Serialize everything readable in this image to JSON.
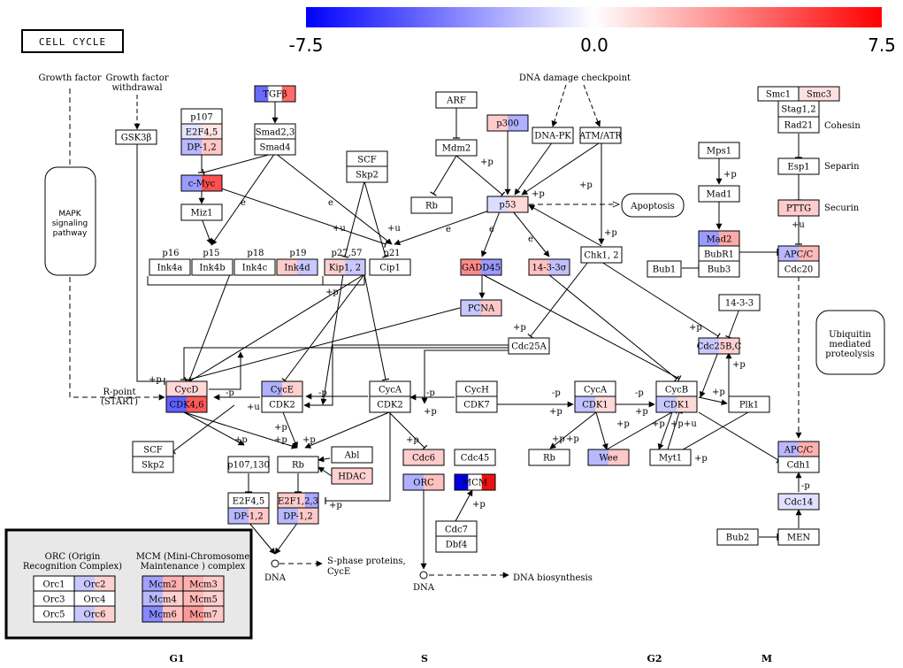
{
  "title": "CELL CYCLE",
  "colors": {
    "neg": "#0000ff",
    "zero": "#ffffff",
    "pos": "#ff0000"
  },
  "scale": {
    "min": -7.5,
    "max": 7.5,
    "labels": [
      "-7.5",
      "0.0",
      "7.5"
    ]
  },
  "phases": [
    "G1",
    "S",
    "G2",
    "M"
  ],
  "free_labels": {
    "growth_factor": "Growth factor",
    "growth_factor_withdrawal_1": "Growth factor",
    "growth_factor_withdrawal_2": "withdrawal",
    "dna_damage_checkpoint": "DNA damage checkpoint",
    "r_point_1": "R-point",
    "r_point_2": "(START)",
    "p16": "p16",
    "p15": "p15",
    "p18": "p18",
    "p19": "p19",
    "p27_57": "p27,57",
    "p21": "p21",
    "cohesin": "Cohesin",
    "separin": "Separin",
    "securin": "Securin",
    "dna_1": "DNA",
    "dna_2": "DNA",
    "s_phase_proteins_1": "S-phase proteins,",
    "s_phase_proteins_2": "CycE",
    "dna_biosynthesis": "DNA biosynthesis"
  },
  "modules": {
    "mapk": [
      "MAPK",
      "signaling",
      "pathway"
    ],
    "apoptosis": [
      "Apoptosis"
    ],
    "ubiquitin": [
      "Ubiquitin",
      "mediated",
      "proteolysis"
    ]
  },
  "legend": {
    "orc_title": [
      "ORC (Origin",
      "Recognition Complex)"
    ],
    "mcm_title": [
      "MCM (Mini-Chromosome",
      "Maintenance ) complex"
    ],
    "orc_items": [
      "Orc1",
      "Orc2",
      "Orc3",
      "Orc4",
      "Orc5",
      "Orc6"
    ],
    "mcm_items": [
      "Mcm2",
      "Mcm3",
      "Mcm4",
      "Mcm5",
      "Mcm6",
      "Mcm7"
    ]
  },
  "genes": {
    "tgfb": {
      "label": "TGFβ",
      "colors": [
        "#6a6aff",
        "#ffffff",
        "#ff6a6a"
      ]
    },
    "smad23": {
      "label": "Smad2,3",
      "colors": [
        "#ffffff"
      ]
    },
    "smad4": {
      "label": "Smad4",
      "colors": [
        "#ffffff"
      ]
    },
    "p107": {
      "label": "p107",
      "colors": [
        "#ffffff"
      ]
    },
    "e2f45_a": {
      "label": "E2F4,5",
      "colors": [
        "#e4e4ff",
        "#ffe4e4"
      ]
    },
    "dp12_a": {
      "label": "DP-1,2",
      "colors": [
        "#b8b8ff",
        "#ffc6c6"
      ]
    },
    "cmyc": {
      "label": "c-Myc",
      "colors": [
        "#9a9aff",
        "#ff5050"
      ]
    },
    "miz1": {
      "label": "Miz1",
      "colors": [
        "#ffffff"
      ]
    },
    "gsk3b": {
      "label": "GSK3β",
      "colors": [
        "#ffffff"
      ]
    },
    "ink4a": {
      "label": "Ink4a",
      "colors": [
        "#ffffff"
      ]
    },
    "ink4b": {
      "label": "Ink4b",
      "colors": [
        "#ffffff"
      ]
    },
    "ink4c": {
      "label": "Ink4c",
      "colors": [
        "#ffffff"
      ]
    },
    "ink4d": {
      "label": "Ink4d",
      "colors": [
        "#ffcccc",
        "#c8c8ff"
      ]
    },
    "scf_a": {
      "label": "SCF",
      "colors": [
        "#ffffff"
      ]
    },
    "skp2_a": {
      "label": "Skp2",
      "colors": [
        "#ffffff"
      ]
    },
    "kip12": {
      "label": "Kip1, 2",
      "colors": [
        "#ffd0d0",
        "#c8c8ff"
      ]
    },
    "cip1": {
      "label": "Cip1",
      "colors": [
        "#ffffff"
      ]
    },
    "arf": {
      "label": "ARF",
      "colors": [
        "#ffffff"
      ]
    },
    "mdm2": {
      "label": "Mdm2",
      "colors": [
        "#ffffff"
      ]
    },
    "rb_a": {
      "label": "Rb",
      "colors": [
        "#ffffff"
      ]
    },
    "p300": {
      "label": "p300",
      "colors": [
        "#ffcccc",
        "#b0b0ff"
      ]
    },
    "dnapk": {
      "label": "DNA-PK",
      "colors": [
        "#ffffff"
      ]
    },
    "atmatr": {
      "label": "ATM/ATR",
      "colors": [
        "#ffffff"
      ]
    },
    "p53": {
      "label": "p53",
      "colors": [
        "#dcdcff",
        "#ffd8d8"
      ]
    },
    "gadd45": {
      "label": "GADD45",
      "colors": [
        "#ff8c8c",
        "#9a9aff"
      ]
    },
    "s1433s": {
      "label": "14-3-3σ",
      "colors": [
        "#ffc0c0",
        "#c0c0ff"
      ]
    },
    "chk12": {
      "label": "Chk1, 2",
      "colors": [
        "#ffffff"
      ]
    },
    "pcna": {
      "label": "PCNA",
      "colors": [
        "#c8c8ff",
        "#ffc8c8"
      ]
    },
    "mps1": {
      "label": "Mps1",
      "colors": [
        "#ffffff"
      ]
    },
    "mad1": {
      "label": "Mad1",
      "colors": [
        "#ffffff"
      ]
    },
    "mad2": {
      "label": "Mad2",
      "colors": [
        "#9a9aff",
        "#ffaaaa"
      ]
    },
    "bubr1": {
      "label": "BubR1",
      "colors": [
        "#ffffff"
      ]
    },
    "bub3": {
      "label": "Bub3",
      "colors": [
        "#ffffff"
      ]
    },
    "bub1": {
      "label": "Bub1",
      "colors": [
        "#ffffff"
      ]
    },
    "smc1": {
      "label": "Smc1",
      "colors": [
        "#ffffff"
      ]
    },
    "smc3": {
      "label": "Smc3",
      "colors": [
        "#ffe0e0"
      ]
    },
    "stag12": {
      "label": "Stag1,2",
      "colors": [
        "#ffffff"
      ]
    },
    "rad21": {
      "label": "Rad21",
      "colors": [
        "#ffffff"
      ]
    },
    "esp1": {
      "label": "Esp1",
      "colors": [
        "#ffffff"
      ]
    },
    "pttg": {
      "label": "PTTG",
      "colors": [
        "#ffcccc"
      ]
    },
    "apcc_a": {
      "label": "APC/C",
      "colors": [
        "#b8b8ff",
        "#ffb8b8"
      ]
    },
    "cdc20": {
      "label": "Cdc20",
      "colors": [
        "#ffffff"
      ]
    },
    "s1433": {
      "label": "14-3-3",
      "colors": [
        "#ffffff"
      ]
    },
    "cdc25bc": {
      "label": "Cdc25B,C",
      "colors": [
        "#c8c8ff",
        "#ffd0d0"
      ]
    },
    "cdc25a": {
      "label": "Cdc25A",
      "colors": [
        "#ffffff"
      ]
    },
    "cycd": {
      "label": "CycD",
      "colors": [
        "#ffd8d8"
      ]
    },
    "cdk46": {
      "label": "CDK4,6",
      "colors": [
        "#6060ff",
        "#ff5a5a"
      ]
    },
    "cyce": {
      "label": "CycE",
      "colors": [
        "#b0b0ff",
        "#ffd0d0"
      ]
    },
    "cdk2_a": {
      "label": "CDK2",
      "colors": [
        "#ffffff"
      ]
    },
    "cyca_a": {
      "label": "CycA",
      "colors": [
        "#ffffff"
      ]
    },
    "cdk2_b": {
      "label": "CDK2",
      "colors": [
        "#ffffff"
      ]
    },
    "cych": {
      "label": "CycH",
      "colors": [
        "#ffffff"
      ]
    },
    "cdk7": {
      "label": "CDK7",
      "colors": [
        "#ffffff"
      ]
    },
    "cyca_b": {
      "label": "CycA",
      "colors": [
        "#ffffff"
      ]
    },
    "cdk1_a": {
      "label": "CDK1",
      "colors": [
        "#c0c0ff",
        "#ffd8d8"
      ]
    },
    "cycb": {
      "label": "CycB",
      "colors": [
        "#ffffff"
      ]
    },
    "cdk1_b": {
      "label": "CDK1",
      "colors": [
        "#c8c8ff",
        "#ffd8d8"
      ]
    },
    "plk1": {
      "label": "Plk1",
      "colors": [
        "#ffffff"
      ]
    },
    "scf_b": {
      "label": "SCF",
      "colors": [
        "#ffffff"
      ]
    },
    "skp2_b": {
      "label": "Skp2",
      "colors": [
        "#ffffff"
      ]
    },
    "p107130": {
      "label": "p107,130",
      "colors": [
        "#ffffff"
      ]
    },
    "rb_b": {
      "label": "Rb",
      "colors": [
        "#ffffff"
      ]
    },
    "abl": {
      "label": "Abl",
      "colors": [
        "#ffffff"
      ]
    },
    "hdac": {
      "label": "HDAC",
      "colors": [
        "#ffd0d0"
      ]
    },
    "e2f45_b": {
      "label": "E2F4,5",
      "colors": [
        "#ffffff"
      ]
    },
    "dp12_b": {
      "label": "DP-1,2",
      "colors": [
        "#b8b8ff",
        "#ffc8c8"
      ]
    },
    "e2f123": {
      "label": "E2F1,2,3",
      "colors": [
        "#ffcccc",
        "#ffcccc",
        "#a8a8ff"
      ]
    },
    "dp12_c": {
      "label": "DP-1,2",
      "colors": [
        "#b8b8ff",
        "#ffc8c8"
      ]
    },
    "cdc6": {
      "label": "Cdc6",
      "colors": [
        "#ffcccc"
      ]
    },
    "cdc45": {
      "label": "Cdc45",
      "colors": [
        "#ffffff"
      ]
    },
    "orc": {
      "label": "ORC",
      "colors": [
        "#b0b0ff",
        "#ffc0c0"
      ]
    },
    "mcm": {
      "label": "MCM",
      "colors": [
        "#0000e0",
        "#ffffff",
        "#ee1010"
      ]
    },
    "cdc7": {
      "label": "Cdc7",
      "colors": [
        "#ffffff"
      ]
    },
    "dbf4": {
      "label": "Dbf4",
      "colors": [
        "#ffffff"
      ]
    },
    "rb_c": {
      "label": "Rb",
      "colors": [
        "#ffffff"
      ]
    },
    "wee": {
      "label": "Wee",
      "colors": [
        "#b8b8ff",
        "#ffc8c8"
      ]
    },
    "myt1": {
      "label": "Myt1",
      "colors": [
        "#ffffff"
      ]
    },
    "apcc_b": {
      "label": "APC/C",
      "colors": [
        "#b8b8ff",
        "#ffb0b0"
      ]
    },
    "cdh1": {
      "label": "Cdh1",
      "colors": [
        "#ffffff"
      ]
    },
    "cdc14": {
      "label": "Cdc14",
      "colors": [
        "#e0e0ff"
      ]
    },
    "bub2": {
      "label": "Bub2",
      "colors": [
        "#ffffff"
      ]
    },
    "men": {
      "label": "MEN",
      "colors": [
        "#ffffff"
      ]
    },
    "orc1": {
      "label": "Orc1",
      "colors": [
        "#ffffff"
      ]
    },
    "orc2": {
      "label": "Orc2",
      "colors": [
        "#c8c8ff",
        "#ffd0d0"
      ]
    },
    "orc3": {
      "label": "Orc3",
      "colors": [
        "#ffffff"
      ]
    },
    "orc4": {
      "label": "Orc4",
      "colors": [
        "#ffffff"
      ]
    },
    "orc5": {
      "label": "Orc5",
      "colors": [
        "#ffffff"
      ]
    },
    "orc6": {
      "label": "Orc6",
      "colors": [
        "#c8c8ff",
        "#ffd0d0"
      ]
    },
    "mcm2": {
      "label": "Mcm2",
      "colors": [
        "#a0a0ff",
        "#ffb0b0"
      ]
    },
    "mcm3": {
      "label": "Mcm3",
      "colors": [
        "#ffb0b0",
        "#ffc8c8"
      ]
    },
    "mcm4": {
      "label": "Mcm4",
      "colors": [
        "#b8b8ff",
        "#ffd0d0"
      ]
    },
    "mcm5": {
      "label": "Mcm5",
      "colors": [
        "#ffb8b8",
        "#ffd0d0"
      ]
    },
    "mcm6": {
      "label": "Mcm6",
      "colors": [
        "#8888ff",
        "#ffc0c0"
      ]
    },
    "mcm7": {
      "label": "Mcm7",
      "colors": [
        "#ff9a9a",
        "#ffc8c8"
      ]
    }
  },
  "edge_labels": {
    "plus_p": "+p",
    "minus_p": "-p",
    "plus_u": "+u",
    "e": "e"
  }
}
